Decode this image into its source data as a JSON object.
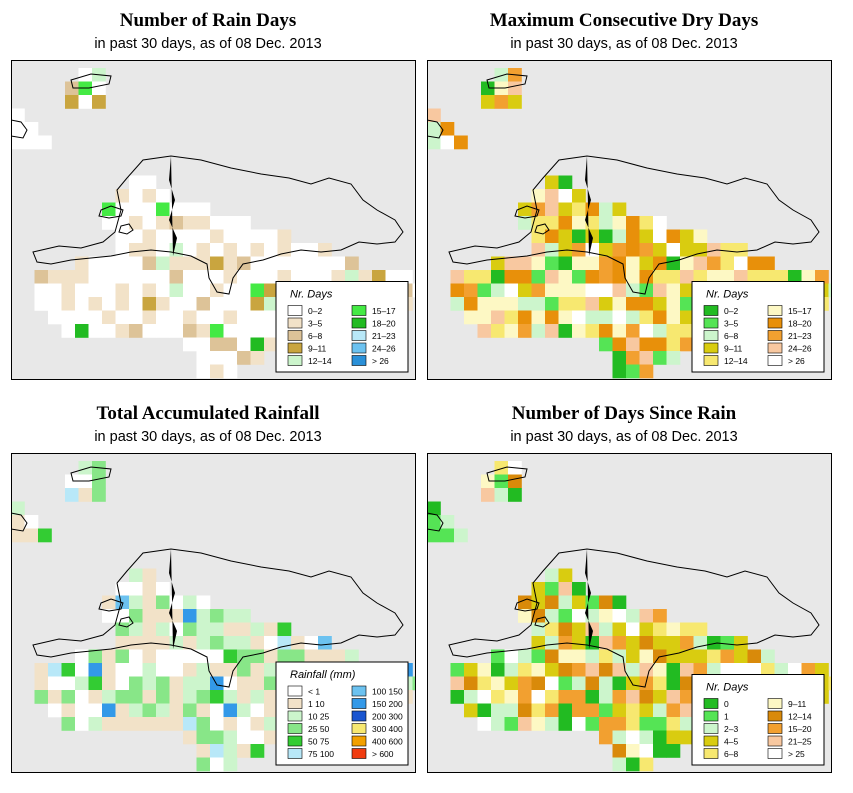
{
  "panels": [
    {
      "id": "rain-days",
      "title": "Number of Rain Days",
      "subtitle": "in past 30 days, as of  08 Dec. 2013",
      "legend": {
        "title": "Nr. Days",
        "items": [
          {
            "label": "0–2",
            "color": "#ffffff"
          },
          {
            "label": "3–5",
            "color": "#f2e2c8"
          },
          {
            "label": "6–8",
            "color": "#ddc398"
          },
          {
            "label": "9–11",
            "color": "#c9a53f"
          },
          {
            "label": "12–14",
            "color": "#ccf5cc"
          },
          {
            "label": "15–17",
            "color": "#44ea44"
          },
          {
            "label": "18–20",
            "color": "#22bb22"
          },
          {
            "label": "21–23",
            "color": "#b8e8f8"
          },
          {
            "label": "24–26",
            "color": "#6cc2f0"
          },
          {
            "label": "> 26",
            "color": "#2a90d8"
          }
        ]
      }
    },
    {
      "id": "dry-days",
      "title": "Maximum Consecutive Dry Days",
      "subtitle": "in past 30 days, as of  08 Dec. 2013",
      "legend": {
        "title": "Nr. Days",
        "items": [
          {
            "label": "0–2",
            "color": "#22bb22"
          },
          {
            "label": "3–5",
            "color": "#55e455"
          },
          {
            "label": "6–8",
            "color": "#ccf5cc"
          },
          {
            "label": "9–11",
            "color": "#d9cc10"
          },
          {
            "label": "12–14",
            "color": "#f7e870"
          },
          {
            "label": "15–17",
            "color": "#fdf8c4"
          },
          {
            "label": "18–20",
            "color": "#e8900a"
          },
          {
            "label": "21–23",
            "color": "#f2a030"
          },
          {
            "label": "24–26",
            "color": "#f8c8a0"
          },
          {
            "label": "> 26",
            "color": "#ffffff"
          }
        ]
      }
    },
    {
      "id": "total-rain",
      "title": "Total Accumulated Rainfall",
      "subtitle": "in past 30 days, as of  08 Dec. 2013",
      "legend": {
        "title": "Rainfall (mm)",
        "items": [
          {
            "label": "< 1",
            "color": "#ffffff"
          },
          {
            "label": "1  10",
            "color": "#f2e2c8"
          },
          {
            "label": "10  25",
            "color": "#ccf5cc"
          },
          {
            "label": "25  50",
            "color": "#88e688"
          },
          {
            "label": "50  75",
            "color": "#33cc33"
          },
          {
            "label": "75  100",
            "color": "#b8e8f8"
          },
          {
            "label": "100  150",
            "color": "#6cc2f0"
          },
          {
            "label": "150  200",
            "color": "#3399e8"
          },
          {
            "label": "200  300",
            "color": "#1a55d0"
          },
          {
            "label": "300  400",
            "color": "#f7e870"
          },
          {
            "label": "400  600",
            "color": "#f2a000"
          },
          {
            "label": "> 600",
            "color": "#f03c10"
          }
        ]
      }
    },
    {
      "id": "days-since-rain",
      "title": "Number of Days Since Rain",
      "subtitle": "in past 30 days, as of  08 Dec. 2013",
      "legend": {
        "title": "Nr. Days",
        "items": [
          {
            "label": "0",
            "color": "#22bb22"
          },
          {
            "label": "1",
            "color": "#55e455"
          },
          {
            "label": "2–3",
            "color": "#ccf5cc"
          },
          {
            "label": "4–5",
            "color": "#d9cc10"
          },
          {
            "label": "6–8",
            "color": "#f7e870"
          },
          {
            "label": "9–11",
            "color": "#fdf8c4"
          },
          {
            "label": "12–14",
            "color": "#d98a0a"
          },
          {
            "label": "15–20",
            "color": "#f2a030"
          },
          {
            "label": "21–25",
            "color": "#f8c8a0"
          },
          {
            "label": "> 25",
            "color": "#ffffff"
          }
        ]
      }
    }
  ]
}
